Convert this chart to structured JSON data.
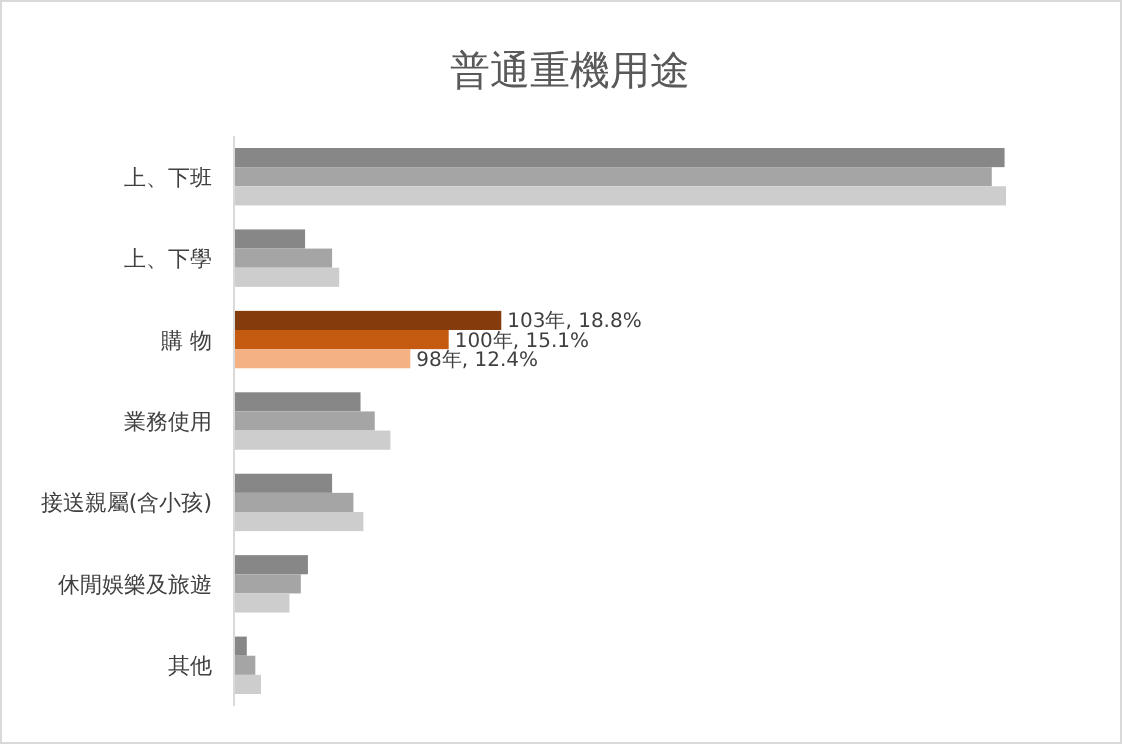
{
  "chart_data": {
    "type": "bar",
    "orientation": "horizontal",
    "title": "普通重機用途",
    "categories": [
      "上、下班",
      "上、下學",
      "購 物",
      "業務使用",
      "接送親屬(含小孩)",
      "休閒娛樂及旅遊",
      "其他"
    ],
    "series": [
      {
        "colors": [
          "#878787",
          "#878787",
          "#843c0c",
          "#878787",
          "#878787",
          "#878787",
          "#878787"
        ],
        "values": [
          54.2,
          5.0,
          18.8,
          8.9,
          6.9,
          5.2,
          0.9
        ],
        "value_labels": [
          null,
          null,
          "103年, 18.8%",
          null,
          null,
          null,
          null
        ]
      },
      {
        "colors": [
          "#a5a5a5",
          "#a5a5a5",
          "#c55a11",
          "#a5a5a5",
          "#a5a5a5",
          "#a5a5a5",
          "#a5a5a5"
        ],
        "values": [
          53.3,
          6.9,
          15.1,
          9.9,
          8.4,
          4.7,
          1.5
        ],
        "value_labels": [
          null,
          null,
          "100年, 15.1%",
          null,
          null,
          null,
          null
        ]
      },
      {
        "colors": [
          "#cdcdcd",
          "#cdcdcd",
          "#f4b183",
          "#cdcdcd",
          "#cdcdcd",
          "#cdcdcd",
          "#cdcdcd"
        ],
        "values": [
          54.3,
          7.4,
          12.4,
          11.0,
          9.1,
          3.9,
          1.9
        ],
        "value_labels": [
          null,
          null,
          "98年, 12.4%",
          null,
          null,
          null,
          null
        ]
      }
    ]
  }
}
